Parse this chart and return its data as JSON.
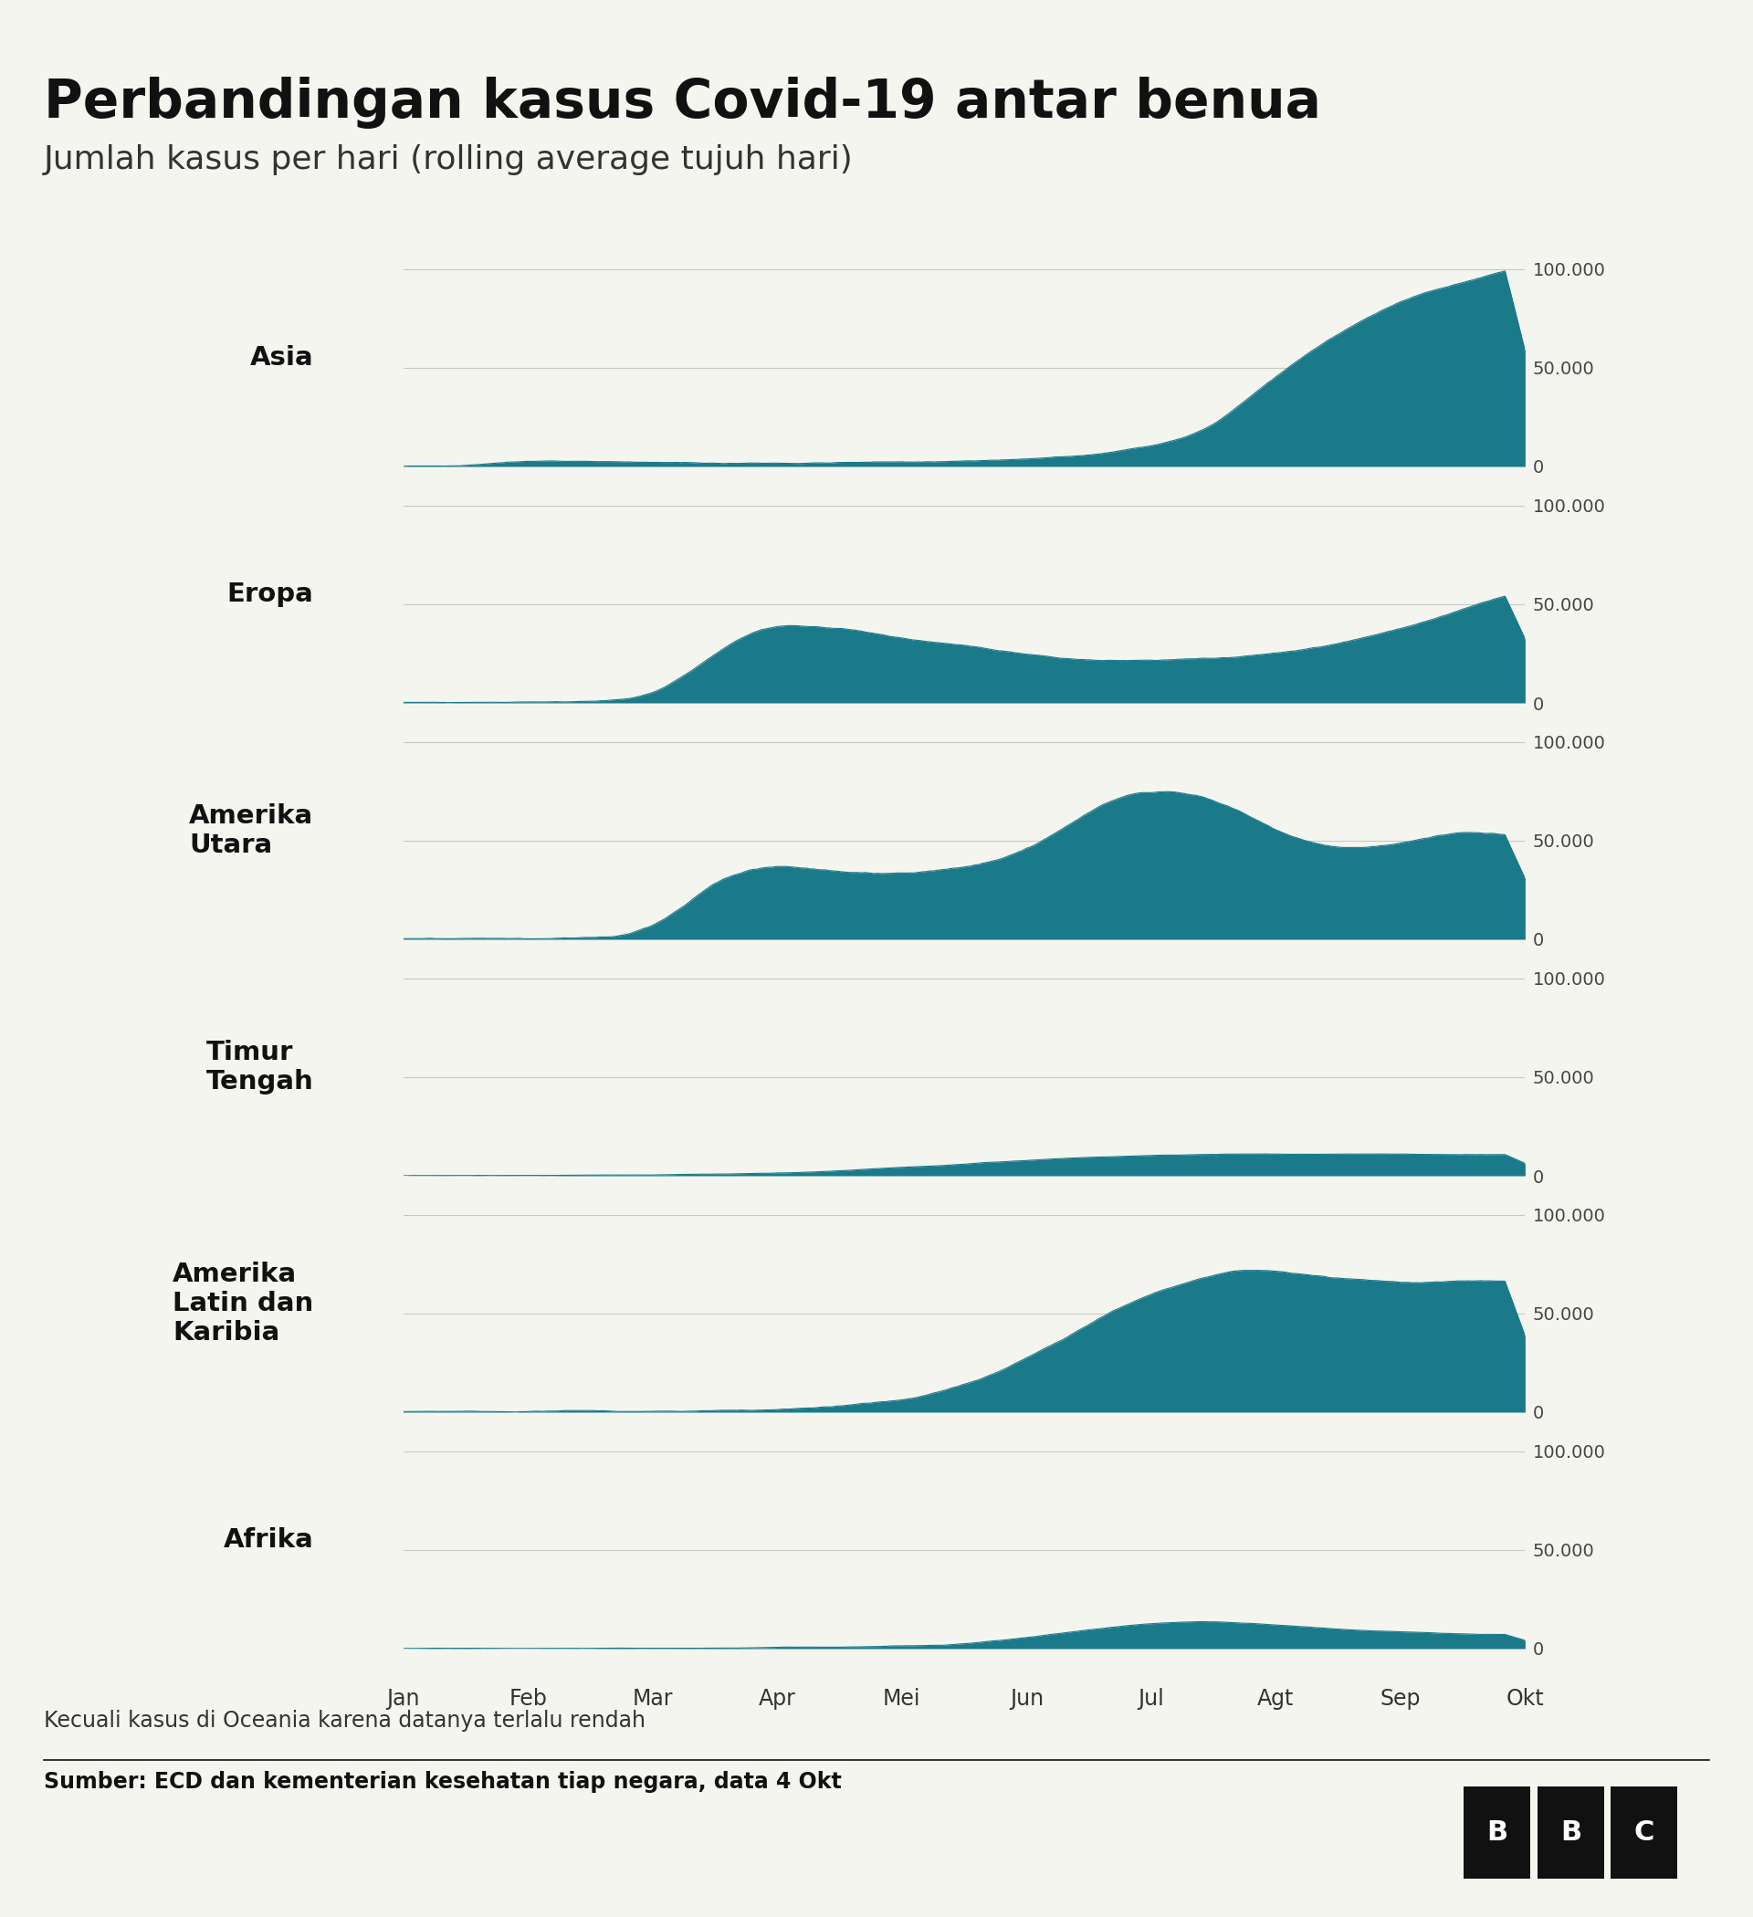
{
  "title": "Perbandingan kasus Covid-19 antar benua",
  "subtitle": "Jumlah kasus per hari (rolling average tujuh hari)",
  "footnote": "Kecuali kasus di Oceania karena datanya terlalu rendah",
  "source": "Sumber: ECD dan kementerian kesehatan tiap negara, data 4 Okt",
  "regions": [
    "Asia",
    "Eropa",
    "Amerika\nUtara",
    "Timur\nTengah",
    "Amerika\nLatin dan\nKaribia",
    "Afrika"
  ],
  "fill_color": "#1a7a8a",
  "background_color": "#f5f5f0",
  "ytick_labels": [
    "0",
    "50.000",
    "100.000"
  ],
  "xtick_labels": [
    "Jan",
    "Feb",
    "Mar",
    "Apr",
    "Mei",
    "Jun",
    "Jul",
    "Agt",
    "Sep",
    "Okt"
  ],
  "n_points": 280,
  "ymax": 110000
}
